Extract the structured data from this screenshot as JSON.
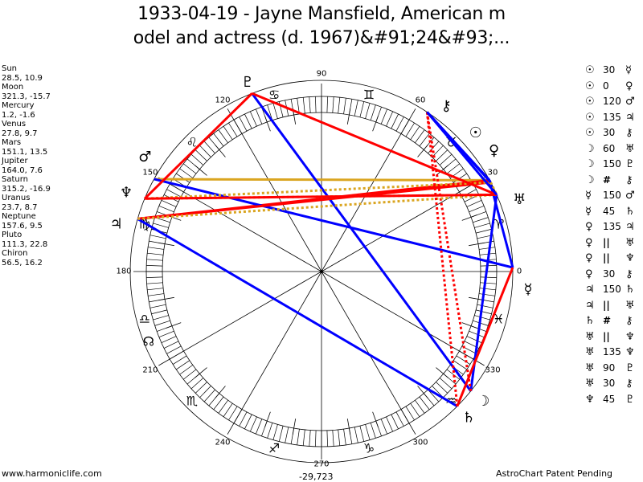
{
  "title": {
    "line1": "1933-04-19 - Jayne Mansfield, American m",
    "line2": "odel and actress (d. 1967)&#91;24&#93;..."
  },
  "planets": [
    {
      "name": "Sun",
      "glyph": "☉",
      "coords": "28.5, 10.9",
      "lon": 28.5
    },
    {
      "name": "Moon",
      "glyph": "☽",
      "coords": "321.3, -15.7",
      "lon": 321.3
    },
    {
      "name": "Mercury",
      "glyph": "☿",
      "coords": "1.2, -1.6",
      "lon": 1.2
    },
    {
      "name": "Venus",
      "glyph": "♀",
      "coords": "27.8, 9.7",
      "lon": 27.8
    },
    {
      "name": "Mars",
      "glyph": "♂",
      "coords": "151.1, 13.5",
      "lon": 151.1
    },
    {
      "name": "Jupiter",
      "glyph": "♃",
      "coords": "164.0, 7.6",
      "lon": 164.0
    },
    {
      "name": "Saturn",
      "glyph": "♄",
      "coords": "315.2, -16.9",
      "lon": 315.2
    },
    {
      "name": "Uranus",
      "glyph": "♅",
      "coords": "23.7, 8.7",
      "lon": 23.7
    },
    {
      "name": "Neptune",
      "glyph": "♆",
      "coords": "157.6, 9.5",
      "lon": 157.6
    },
    {
      "name": "Pluto",
      "glyph": "♇",
      "coords": "111.3, 22.8",
      "lon": 111.3
    },
    {
      "name": "Chiron",
      "glyph": "⚷",
      "coords": "56.5, 16.2",
      "lon": 56.5
    }
  ],
  "aspect_colors": {
    "30": "#0000ff",
    "45": "#ff0000",
    "60": "#0000ff",
    "90": "#ff0000",
    "120": "#daa520",
    "135": "#ff0000",
    "150": "#0000ff",
    "||": "#daa520",
    "#": "#ff0000"
  },
  "aspects": [
    {
      "p1": "Sun",
      "a": "30",
      "p2": "Mercury"
    },
    {
      "p1": "Sun",
      "a": "0",
      "p2": "Venus"
    },
    {
      "p1": "Sun",
      "a": "120",
      "p2": "Mars"
    },
    {
      "p1": "Sun",
      "a": "135",
      "p2": "Jupiter"
    },
    {
      "p1": "Sun",
      "a": "30",
      "p2": "Chiron"
    },
    {
      "p1": "Moon",
      "a": "60",
      "p2": "Uranus"
    },
    {
      "p1": "Moon",
      "a": "150",
      "p2": "Pluto"
    },
    {
      "p1": "Moon",
      "a": "#",
      "p2": "Chiron"
    },
    {
      "p1": "Mercury",
      "a": "150",
      "p2": "Mars"
    },
    {
      "p1": "Mercury",
      "a": "45",
      "p2": "Saturn"
    },
    {
      "p1": "Venus",
      "a": "135",
      "p2": "Jupiter"
    },
    {
      "p1": "Venus",
      "a": "||",
      "p2": "Uranus"
    },
    {
      "p1": "Venus",
      "a": "||",
      "p2": "Neptune"
    },
    {
      "p1": "Venus",
      "a": "30",
      "p2": "Chiron"
    },
    {
      "p1": "Jupiter",
      "a": "150",
      "p2": "Saturn"
    },
    {
      "p1": "Jupiter",
      "a": "||",
      "p2": "Uranus"
    },
    {
      "p1": "Saturn",
      "a": "#",
      "p2": "Chiron"
    },
    {
      "p1": "Uranus",
      "a": "||",
      "p2": "Neptune"
    },
    {
      "p1": "Uranus",
      "a": "135",
      "p2": "Neptune"
    },
    {
      "p1": "Uranus",
      "a": "90",
      "p2": "Pluto"
    },
    {
      "p1": "Uranus",
      "a": "30",
      "p2": "Chiron"
    },
    {
      "p1": "Neptune",
      "a": "45",
      "p2": "Pluto"
    }
  ],
  "signs": [
    "♈",
    "♉",
    "♊",
    "♋",
    "♌",
    "♍",
    "♎",
    "♏",
    "♐",
    "♑",
    "♒",
    "♓"
  ],
  "degree_labels": [
    "0",
    "30",
    "60",
    "90",
    "120",
    "150",
    "180",
    "210",
    "240",
    "270",
    "300",
    "330"
  ],
  "node_glyph": "☊",
  "footer": {
    "site": "www.harmoniclife.com",
    "value": "-29,723",
    "patent": "AstroChart Patent Pending"
  }
}
